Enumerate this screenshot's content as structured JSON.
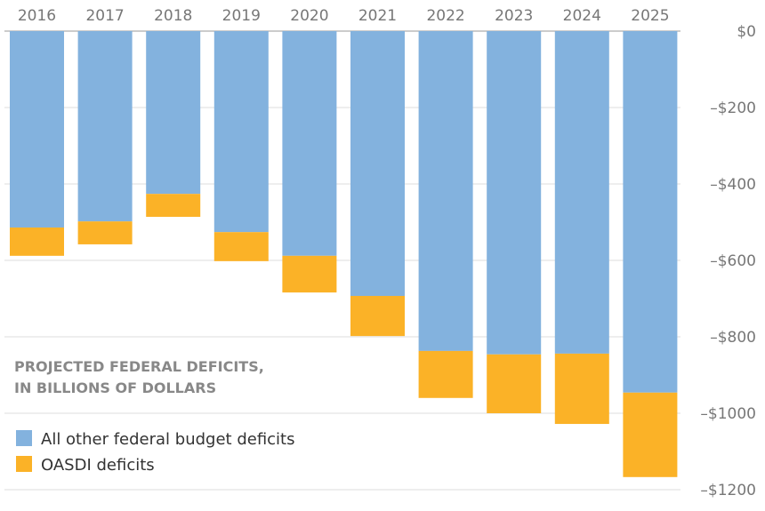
{
  "chart_data": {
    "type": "bar",
    "stacked": true,
    "title": "PROJECTED FEDERAL DEFICITS,",
    "subtitle": "IN BILLIONS OF DOLLARS",
    "categories": [
      "2016",
      "2017",
      "2018",
      "2019",
      "2020",
      "2021",
      "2022",
      "2023",
      "2024",
      "2025"
    ],
    "series": [
      {
        "name": "All other federal budget deficits",
        "color": "#83b2de",
        "values": [
          -514,
          -498,
          -426,
          -526,
          -588,
          -693,
          -837,
          -846,
          -844,
          -946
        ]
      },
      {
        "name": "OASDI deficits",
        "color": "#fbb227",
        "values": [
          -74,
          -60,
          -60,
          -76,
          -96,
          -105,
          -123,
          -154,
          -184,
          -221
        ]
      }
    ],
    "ylim": [
      -1200,
      0
    ],
    "yticks": [
      0,
      -200,
      -400,
      -600,
      -800,
      -1000,
      -1200
    ],
    "ytick_labels": [
      "$0",
      "–$200",
      "–$400",
      "–$600",
      "–$800",
      "–$1000",
      "–$1200"
    ],
    "y_axis_position": "right",
    "x_axis_position": "top",
    "grid": true,
    "legend_position": "bottom-left"
  }
}
